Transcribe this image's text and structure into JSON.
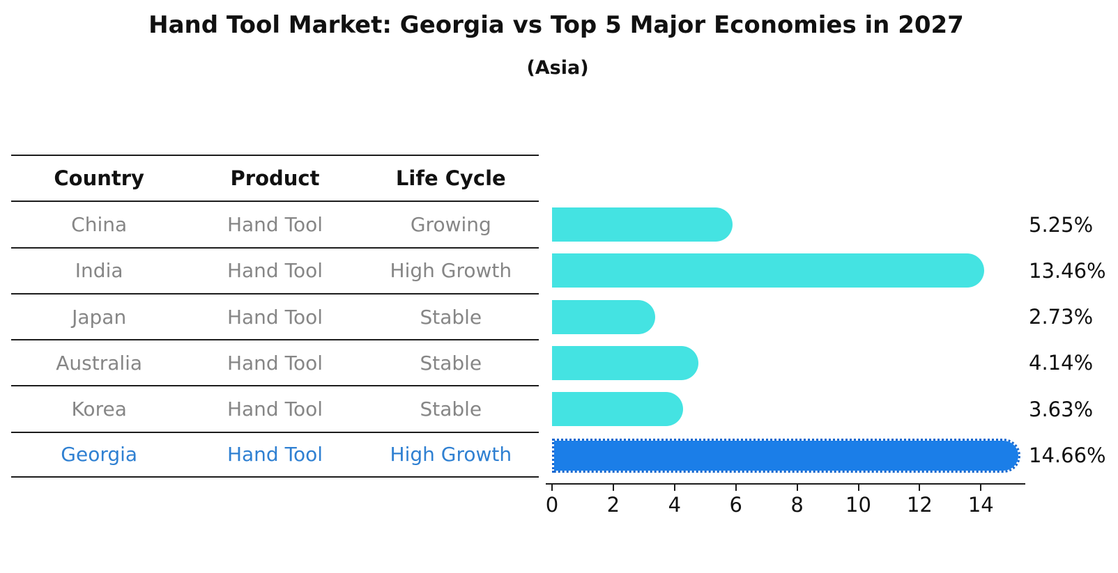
{
  "title": "Hand Tool Market: Georgia vs Top 5 Major Economies in 2027",
  "subtitle": "(Asia)",
  "table": {
    "headers": [
      "Country",
      "Product",
      "Life Cycle"
    ],
    "rows": [
      {
        "country": "China",
        "product": "Hand Tool",
        "life_cycle": "Growing",
        "highlight": false
      },
      {
        "country": "India",
        "product": "Hand Tool",
        "life_cycle": "High Growth",
        "highlight": false
      },
      {
        "country": "Japan",
        "product": "Hand Tool",
        "life_cycle": "Stable",
        "highlight": false
      },
      {
        "country": "Australia",
        "product": "Hand Tool",
        "life_cycle": "Stable",
        "highlight": false
      },
      {
        "country": "Korea",
        "product": "Hand Tool",
        "life_cycle": "Stable",
        "highlight": false
      },
      {
        "country": "Georgia",
        "product": "Hand Tool",
        "life_cycle": "High Growth",
        "highlight": true
      }
    ]
  },
  "chart_data": {
    "type": "bar",
    "orientation": "horizontal",
    "title": "Hand Tool Market: Georgia vs Top 5 Major Economies in 2027",
    "subtitle": "(Asia)",
    "categories": [
      "China",
      "India",
      "Japan",
      "Australia",
      "Korea",
      "Georgia"
    ],
    "values": [
      5.25,
      13.46,
      2.73,
      4.14,
      3.63,
      14.66
    ],
    "value_labels": [
      "5.25%",
      "13.46%",
      "2.73%",
      "4.14%",
      "3.63%",
      "14.66%"
    ],
    "highlight_index": 5,
    "xlim": [
      0,
      15.45
    ],
    "x_ticks": [
      0,
      2,
      4,
      6,
      8,
      10,
      12,
      14
    ],
    "x_tick_labels": [
      "0",
      "2",
      "4",
      "6",
      "8",
      "10",
      "12",
      "14"
    ],
    "grid": false,
    "legend": false
  },
  "colors": {
    "bar": "#44E3E2",
    "highlight_bar": "#1B7EE8",
    "highlight_edge": "#1668D0",
    "highlight_text": "#2F80D2",
    "row_text": "#868686",
    "header_text": "#111111",
    "line": "#1c1c1c"
  }
}
